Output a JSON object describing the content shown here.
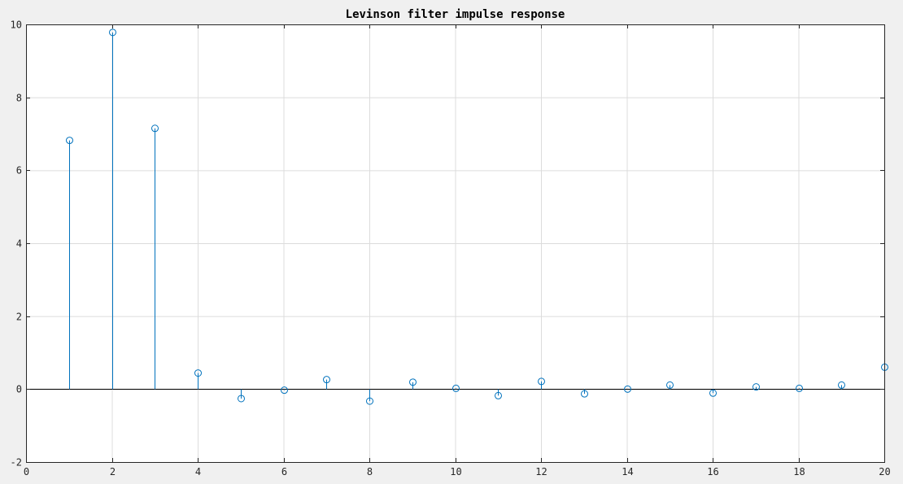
{
  "chart_data": {
    "type": "stem",
    "title": "Levinson filter impulse response",
    "xlabel": "",
    "ylabel": "",
    "xlim": [
      0,
      20
    ],
    "ylim": [
      -2,
      10
    ],
    "xticks": [
      0,
      2,
      4,
      6,
      8,
      10,
      12,
      14,
      16,
      18,
      20
    ],
    "yticks": [
      -2,
      0,
      2,
      4,
      6,
      8,
      10
    ],
    "grid": true,
    "baseline": 0,
    "color": "#0072bd",
    "series": [
      {
        "x": [
          1,
          2,
          3,
          4,
          5,
          6,
          7,
          8,
          9,
          10,
          11,
          12,
          13,
          14,
          15,
          16,
          17,
          18,
          19,
          20
        ],
        "values": [
          6.82,
          9.78,
          7.15,
          0.44,
          -0.26,
          -0.03,
          0.26,
          -0.33,
          0.19,
          0.02,
          -0.18,
          0.21,
          -0.13,
          0.0,
          0.11,
          -0.11,
          0.06,
          0.02,
          0.11,
          0.6
        ]
      }
    ]
  }
}
